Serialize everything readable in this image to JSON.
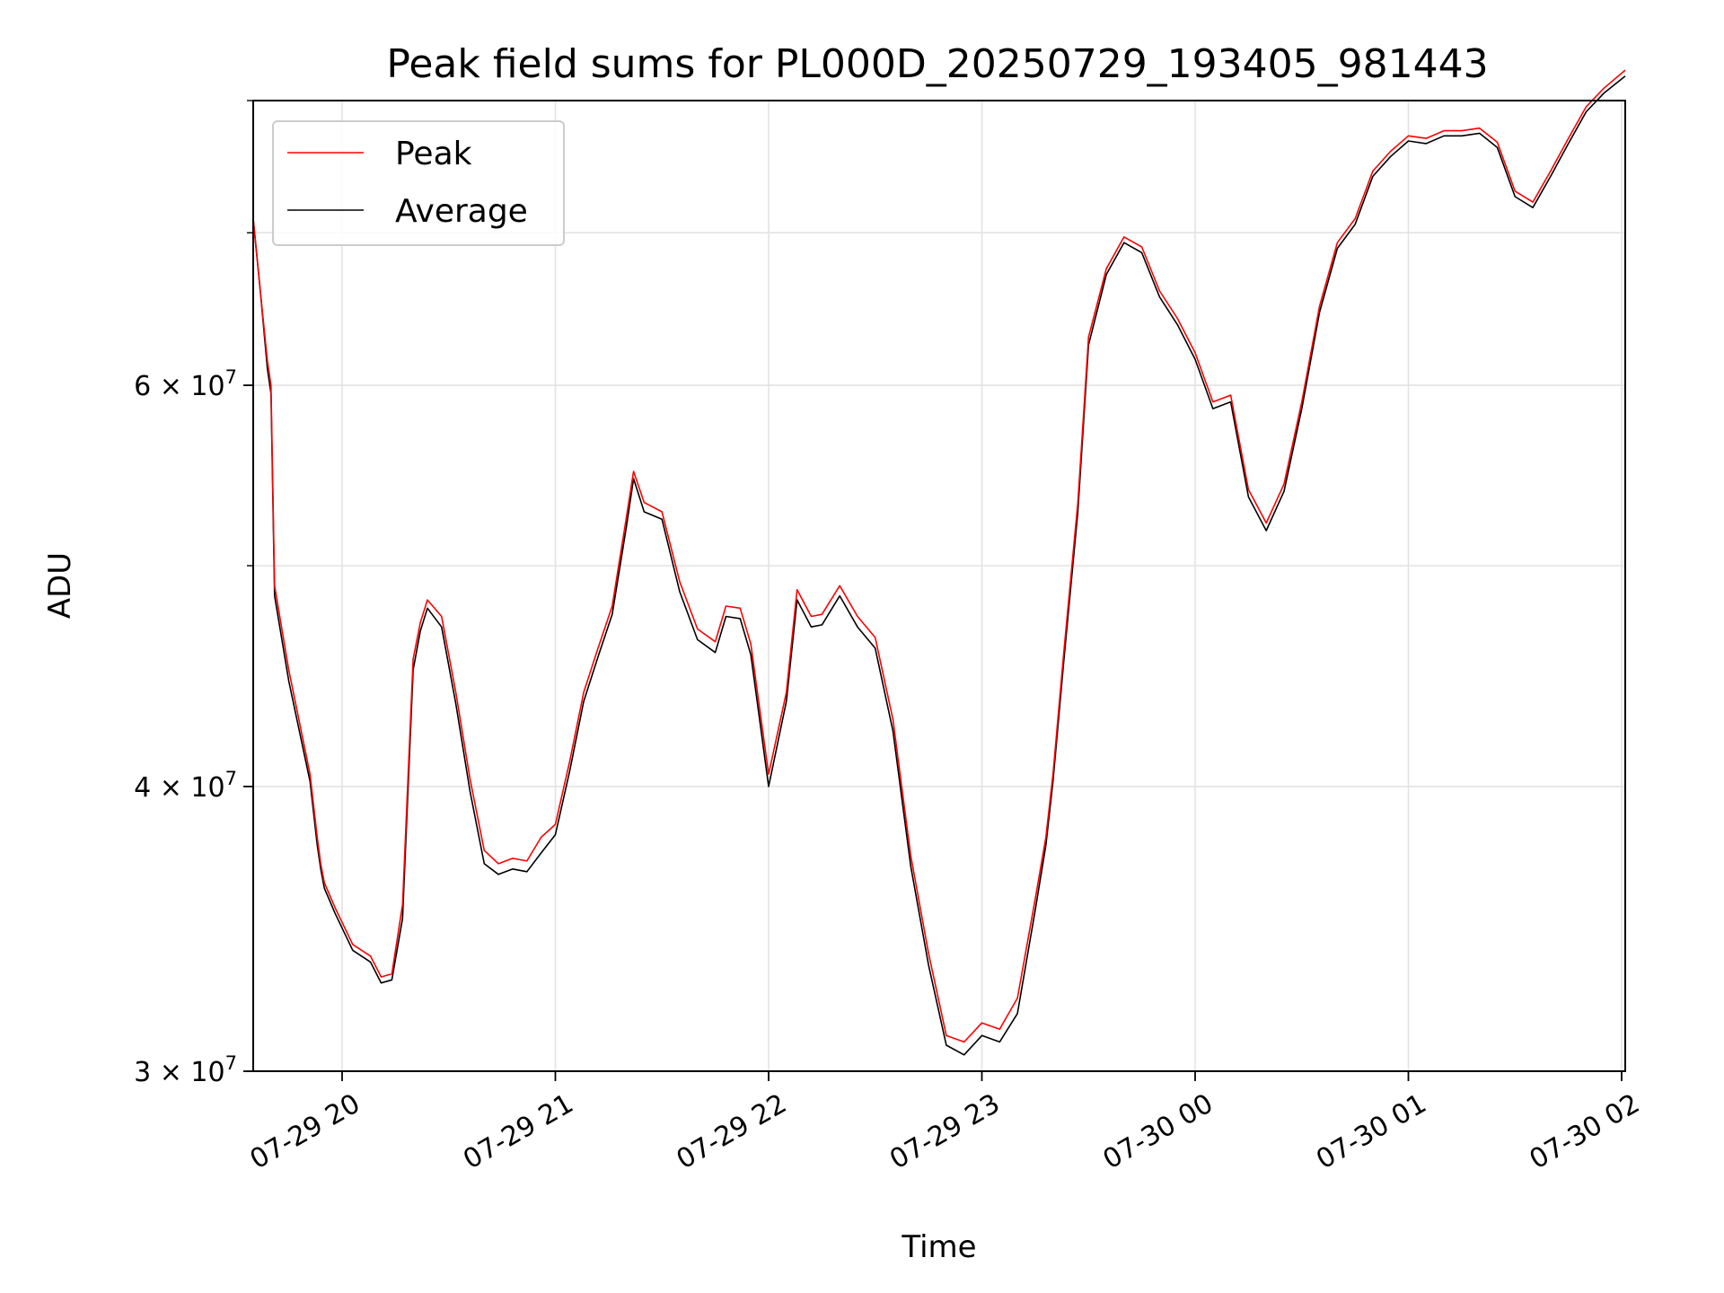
{
  "chart_data": {
    "type": "line",
    "title": "Peak field sums for PL000D_20250729_193405_981443",
    "xlabel": "Time",
    "ylabel": "ADU",
    "y_scale": "log",
    "ylim": [
      30000000,
      80000000
    ],
    "xlim": [
      "2025-07-29T19:35",
      "2025-07-30T02:01"
    ],
    "grid": true,
    "legend_position": "upper-left",
    "x_tick_labels": [
      "07-29 20",
      "07-29 21",
      "07-29 22",
      "07-29 23",
      "07-30 00",
      "07-30 01",
      "07-30 02"
    ],
    "x_tick_values": [
      "2025-07-29T20:00",
      "2025-07-29T21:00",
      "2025-07-29T22:00",
      "2025-07-29T23:00",
      "2025-07-30T00:00",
      "2025-07-30T01:00",
      "2025-07-30T02:00"
    ],
    "y_tick_labels": [
      {
        "value": 30000000,
        "mantissa": "3",
        "base": "10",
        "exp": "7"
      },
      {
        "value": 40000000,
        "mantissa": "4",
        "base": "10",
        "exp": "7"
      },
      {
        "value": 60000000,
        "mantissa": "6",
        "base": "10",
        "exp": "7"
      }
    ],
    "y_gridlines": [
      30000000,
      40000000,
      50000000,
      60000000,
      70000000,
      80000000
    ],
    "series": [
      {
        "name": "Peak",
        "color": "#ff0000",
        "x": [
          "2025-07-29T19:35",
          "2025-07-29T19:37",
          "2025-07-29T19:39",
          "2025-07-29T19:40",
          "2025-07-29T19:41",
          "2025-07-29T19:45",
          "2025-07-29T19:51",
          "2025-07-29T19:53",
          "2025-07-29T19:54",
          "2025-07-29T19:55",
          "2025-07-29T19:58",
          "2025-07-29T20:03",
          "2025-07-29T20:08",
          "2025-07-29T20:11",
          "2025-07-29T20:14",
          "2025-07-29T20:17",
          "2025-07-29T20:20",
          "2025-07-29T20:22",
          "2025-07-29T20:24",
          "2025-07-29T20:28",
          "2025-07-29T20:32",
          "2025-07-29T20:36",
          "2025-07-29T20:40",
          "2025-07-29T20:44",
          "2025-07-29T20:48",
          "2025-07-29T20:52",
          "2025-07-29T20:56",
          "2025-07-29T21:00",
          "2025-07-29T21:04",
          "2025-07-29T21:08",
          "2025-07-29T21:12",
          "2025-07-29T21:16",
          "2025-07-29T21:20",
          "2025-07-29T21:22",
          "2025-07-29T21:25",
          "2025-07-29T21:30",
          "2025-07-29T21:35",
          "2025-07-29T21:40",
          "2025-07-29T21:45",
          "2025-07-29T21:48",
          "2025-07-29T21:52",
          "2025-07-29T21:55",
          "2025-07-29T22:00",
          "2025-07-29T22:05",
          "2025-07-29T22:08",
          "2025-07-29T22:12",
          "2025-07-29T22:15",
          "2025-07-29T22:20",
          "2025-07-29T22:25",
          "2025-07-29T22:30",
          "2025-07-29T22:35",
          "2025-07-29T22:40",
          "2025-07-29T22:45",
          "2025-07-29T22:50",
          "2025-07-29T22:55",
          "2025-07-29T23:00",
          "2025-07-29T23:05",
          "2025-07-29T23:10",
          "2025-07-29T23:15",
          "2025-07-29T23:18",
          "2025-07-29T23:20",
          "2025-07-29T23:23",
          "2025-07-29T23:27",
          "2025-07-29T23:30",
          "2025-07-29T23:35",
          "2025-07-29T23:40",
          "2025-07-29T23:45",
          "2025-07-29T23:50",
          "2025-07-29T23:55",
          "2025-07-30T00:00",
          "2025-07-30T00:05",
          "2025-07-30T00:10",
          "2025-07-30T00:15",
          "2025-07-30T00:20",
          "2025-07-30T00:25",
          "2025-07-30T00:30",
          "2025-07-30T00:35",
          "2025-07-30T00:40",
          "2025-07-30T00:45",
          "2025-07-30T00:50",
          "2025-07-30T00:55",
          "2025-07-30T01:00",
          "2025-07-30T01:05",
          "2025-07-30T01:10",
          "2025-07-30T01:15",
          "2025-07-30T01:20",
          "2025-07-30T01:25",
          "2025-07-30T01:30",
          "2025-07-30T01:35",
          "2025-07-30T01:40",
          "2025-07-30T01:45",
          "2025-07-30T01:50",
          "2025-07-30T01:55",
          "2025-07-30T02:01"
        ],
        "y": [
          71000000,
          66000000,
          61500000,
          60000000,
          49000000,
          45000000,
          40500000,
          38000000,
          37000000,
          36300000,
          35400000,
          34100000,
          33700000,
          33000000,
          33100000,
          35500000,
          45500000,
          47200000,
          48300000,
          47500000,
          44000000,
          40300000,
          37500000,
          37000000,
          37200000,
          37100000,
          38000000,
          38500000,
          41000000,
          44000000,
          46000000,
          48000000,
          52500000,
          55000000,
          53300000,
          52800000,
          49200000,
          46900000,
          46300000,
          48000000,
          47900000,
          46200000,
          40500000,
          44000000,
          48800000,
          47500000,
          47600000,
          49000000,
          47500000,
          46500000,
          42800000,
          37300000,
          33800000,
          31100000,
          30900000,
          31500000,
          31300000,
          32300000,
          35700000,
          38000000,
          40500000,
          45700000,
          53300000,
          63000000,
          67500000,
          69700000,
          69000000,
          66000000,
          64200000,
          62000000,
          59000000,
          59400000,
          54000000,
          52200000,
          54300000,
          59000000,
          65000000,
          69300000,
          71000000,
          74500000,
          76000000,
          77200000,
          77000000,
          77600000,
          77600000,
          77800000,
          76700000,
          73000000,
          72200000,
          74500000,
          77000000,
          79500000,
          81000000,
          82500000
        ]
      },
      {
        "name": "Average",
        "color": "#000000",
        "x": [
          "2025-07-29T19:35",
          "2025-07-29T19:37",
          "2025-07-29T19:39",
          "2025-07-29T19:40",
          "2025-07-29T19:41",
          "2025-07-29T19:45",
          "2025-07-29T19:51",
          "2025-07-29T19:53",
          "2025-07-29T19:54",
          "2025-07-29T19:55",
          "2025-07-29T19:58",
          "2025-07-29T20:03",
          "2025-07-29T20:08",
          "2025-07-29T20:11",
          "2025-07-29T20:14",
          "2025-07-29T20:17",
          "2025-07-29T20:20",
          "2025-07-29T20:22",
          "2025-07-29T20:24",
          "2025-07-29T20:28",
          "2025-07-29T20:32",
          "2025-07-29T20:36",
          "2025-07-29T20:40",
          "2025-07-29T20:44",
          "2025-07-29T20:48",
          "2025-07-29T20:52",
          "2025-07-29T20:56",
          "2025-07-29T21:00",
          "2025-07-29T21:04",
          "2025-07-29T21:08",
          "2025-07-29T21:12",
          "2025-07-29T21:16",
          "2025-07-29T21:20",
          "2025-07-29T21:22",
          "2025-07-29T21:25",
          "2025-07-29T21:30",
          "2025-07-29T21:35",
          "2025-07-29T21:40",
          "2025-07-29T21:45",
          "2025-07-29T21:48",
          "2025-07-29T21:52",
          "2025-07-29T21:55",
          "2025-07-29T22:00",
          "2025-07-29T22:05",
          "2025-07-29T22:08",
          "2025-07-29T22:12",
          "2025-07-29T22:15",
          "2025-07-29T22:20",
          "2025-07-29T22:25",
          "2025-07-29T22:30",
          "2025-07-29T22:35",
          "2025-07-29T22:40",
          "2025-07-29T22:45",
          "2025-07-29T22:50",
          "2025-07-29T22:55",
          "2025-07-29T23:00",
          "2025-07-29T23:05",
          "2025-07-29T23:10",
          "2025-07-29T23:15",
          "2025-07-29T23:18",
          "2025-07-29T23:20",
          "2025-07-29T23:23",
          "2025-07-29T23:27",
          "2025-07-29T23:30",
          "2025-07-29T23:35",
          "2025-07-29T23:40",
          "2025-07-29T23:45",
          "2025-07-29T23:50",
          "2025-07-29T23:55",
          "2025-07-30T00:00",
          "2025-07-30T00:05",
          "2025-07-30T00:10",
          "2025-07-30T00:15",
          "2025-07-30T00:20",
          "2025-07-30T00:25",
          "2025-07-30T00:30",
          "2025-07-30T00:35",
          "2025-07-30T00:40",
          "2025-07-30T00:45",
          "2025-07-30T00:50",
          "2025-07-30T00:55",
          "2025-07-30T01:00",
          "2025-07-30T01:05",
          "2025-07-30T01:10",
          "2025-07-30T01:15",
          "2025-07-30T01:20",
          "2025-07-30T01:25",
          "2025-07-30T01:30",
          "2025-07-30T01:35",
          "2025-07-30T01:40",
          "2025-07-30T01:45",
          "2025-07-30T01:50",
          "2025-07-30T01:55",
          "2025-07-30T02:01"
        ],
        "y": [
          71000000,
          66000000,
          61000000,
          59500000,
          48500000,
          44500000,
          40200000,
          37700000,
          36800000,
          36100000,
          35200000,
          33900000,
          33500000,
          32800000,
          32900000,
          35000000,
          45000000,
          46800000,
          47900000,
          47000000,
          43500000,
          39800000,
          37000000,
          36600000,
          36800000,
          36700000,
          37400000,
          38100000,
          40600000,
          43600000,
          45600000,
          47600000,
          52000000,
          54600000,
          52800000,
          52400000,
          48700000,
          46400000,
          45800000,
          47500000,
          47400000,
          45700000,
          40000000,
          43600000,
          48300000,
          47000000,
          47100000,
          48500000,
          47000000,
          46000000,
          42300000,
          36900000,
          33400000,
          30800000,
          30500000,
          31100000,
          30900000,
          31800000,
          35300000,
          37700000,
          40200000,
          45300000,
          52800000,
          62500000,
          67100000,
          69300000,
          68600000,
          65600000,
          63800000,
          61600000,
          58600000,
          59000000,
          53600000,
          51800000,
          53900000,
          58600000,
          64600000,
          68900000,
          70600000,
          74100000,
          75600000,
          76800000,
          76600000,
          77200000,
          77200000,
          77400000,
          76300000,
          72600000,
          71800000,
          74100000,
          76600000,
          79100000,
          80600000,
          82000000
        ]
      }
    ]
  }
}
